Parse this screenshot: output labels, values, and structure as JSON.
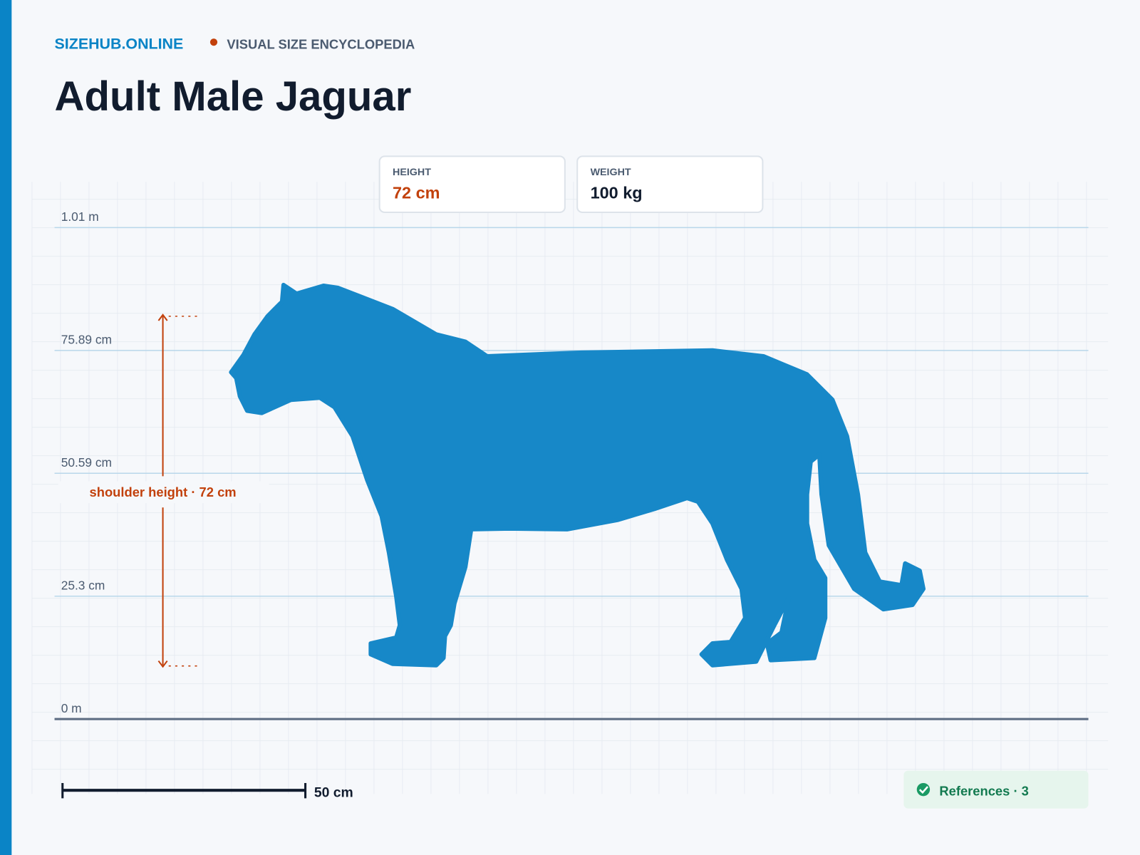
{
  "header": {
    "brand": "SIZEHUB.ONLINE",
    "tagline": "VISUAL SIZE ENCYCLOPEDIA"
  },
  "title": "Adult Male Jaguar",
  "stats": [
    {
      "label": "HEIGHT",
      "value": "72 cm"
    },
    {
      "label": "WEIGHT",
      "value": "100 kg"
    }
  ],
  "guides": [
    "1.01 m",
    "75.89 cm",
    "50.59 cm",
    "25.3 cm",
    "0 m"
  ],
  "annotation": "shoulder height · 72 cm",
  "scale_bar": "50 cm",
  "references": "References · 3"
}
